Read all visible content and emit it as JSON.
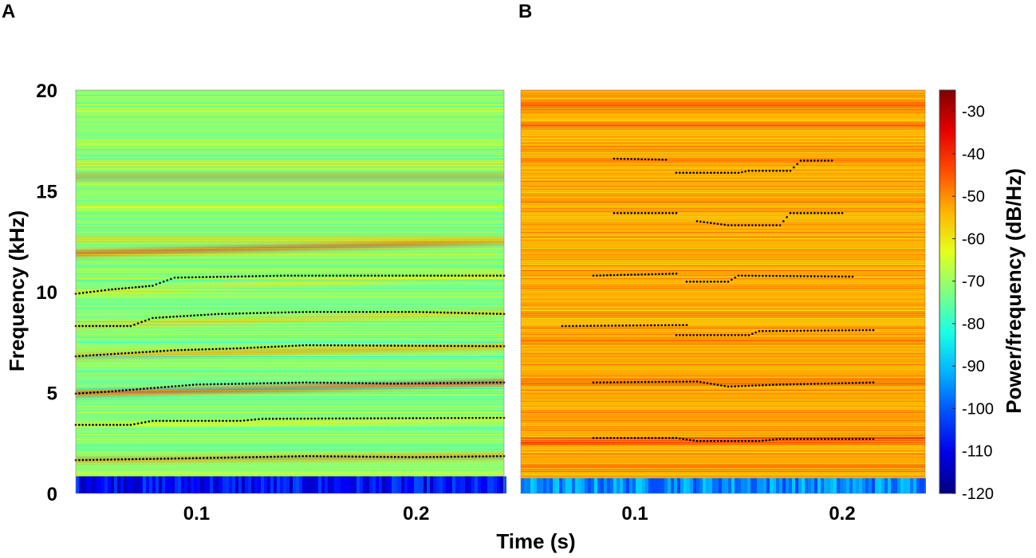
{
  "chart_data": {
    "type": "heatmap",
    "xlabel": "Time (s)",
    "ylabel": "Frequency (kHz)",
    "xlim": [
      0.045,
      0.24
    ],
    "ylim": [
      0,
      20
    ],
    "x_ticks": [
      0.1,
      0.2
    ],
    "x_tick_labels": [
      "0.1",
      "0.2"
    ],
    "y_ticks": [
      0,
      5,
      10,
      15,
      20
    ],
    "y_tick_labels": [
      "0",
      "5",
      "10",
      "15",
      "20"
    ],
    "colorbar": {
      "label": "Power/frequency (dB/Hz)",
      "colormap": "jet",
      "range": [
        -120,
        -25
      ],
      "ticks": [
        -30,
        -40,
        -50,
        -60,
        -70,
        -80,
        -90,
        -100,
        -110,
        -120
      ],
      "tick_labels": [
        "-30",
        "-40",
        "-50",
        "-60",
        "-70",
        "-80",
        "-90",
        "-100",
        "-110",
        "-120"
      ]
    },
    "panels": [
      {
        "letter": "A",
        "background_dB": -72,
        "low_band_dB": -108,
        "low_band_kHz": [
          0,
          0.85
        ],
        "bands": [
          {
            "f": 0.9,
            "dB": -60
          },
          {
            "f": 1.65,
            "dB": -48,
            "f_end": 1.85
          },
          {
            "f": 3.35,
            "dB": -60,
            "f_end": 3.7
          },
          {
            "f": 4.95,
            "dB": -38,
            "f_end": 5.5
          },
          {
            "f": 6.8,
            "dB": -50,
            "f_end": 7.3
          },
          {
            "f": 8.3,
            "dB": -55,
            "f_end": 9.0
          },
          {
            "f": 10.0,
            "dB": -58,
            "f_end": 10.8
          },
          {
            "f": 11.9,
            "dB": -40,
            "f_end": 12.5
          },
          {
            "f": 12.6,
            "dB": -55
          },
          {
            "f": 14.2,
            "dB": -62
          },
          {
            "f": 15.7,
            "dB": -48
          },
          {
            "f": 16.3,
            "dB": -58
          },
          {
            "f": 17.4,
            "dB": -65
          },
          {
            "f": 19.0,
            "dB": -65
          }
        ],
        "tracks": [
          {
            "points": [
              [
                0.045,
                1.65
              ],
              [
                0.1,
                1.75
              ],
              [
                0.15,
                1.85
              ],
              [
                0.2,
                1.8
              ],
              [
                0.24,
                1.85
              ]
            ]
          },
          {
            "points": [
              [
                0.045,
                3.4
              ],
              [
                0.07,
                3.4
              ],
              [
                0.08,
                3.6
              ],
              [
                0.12,
                3.6
              ],
              [
                0.13,
                3.7
              ],
              [
                0.24,
                3.75
              ]
            ]
          },
          {
            "points": [
              [
                0.045,
                4.95
              ],
              [
                0.06,
                5.05
              ],
              [
                0.1,
                5.4
              ],
              [
                0.15,
                5.5
              ],
              [
                0.19,
                5.45
              ],
              [
                0.24,
                5.5
              ]
            ]
          },
          {
            "points": [
              [
                0.045,
                6.8
              ],
              [
                0.09,
                7.1
              ],
              [
                0.12,
                7.2
              ],
              [
                0.15,
                7.35
              ],
              [
                0.24,
                7.3
              ]
            ]
          },
          {
            "points": [
              [
                0.045,
                8.3
              ],
              [
                0.07,
                8.3
              ],
              [
                0.08,
                8.7
              ],
              [
                0.11,
                8.9
              ],
              [
                0.15,
                9.0
              ],
              [
                0.2,
                9.0
              ],
              [
                0.24,
                8.9
              ]
            ]
          },
          {
            "points": [
              [
                0.045,
                9.9
              ],
              [
                0.06,
                10.1
              ],
              [
                0.08,
                10.3
              ],
              [
                0.09,
                10.7
              ],
              [
                0.14,
                10.8
              ],
              [
                0.24,
                10.8
              ]
            ]
          }
        ]
      },
      {
        "letter": "B",
        "background_dB": -53,
        "low_band_dB": -95,
        "low_band_kHz": [
          0,
          0.75
        ],
        "bands": [
          {
            "f": 1.3,
            "dB": -46
          },
          {
            "f": 2.55,
            "dB": -36,
            "f_end": 2.7
          },
          {
            "f": 3.8,
            "dB": -50
          },
          {
            "f": 5.5,
            "dB": -44,
            "f_end": 5.5
          },
          {
            "f": 7.6,
            "dB": -50
          },
          {
            "f": 9.8,
            "dB": -52
          },
          {
            "f": 12.0,
            "dB": -52
          },
          {
            "f": 14.5,
            "dB": -50
          },
          {
            "f": 16.5,
            "dB": -48
          },
          {
            "f": 18.2,
            "dB": -45
          },
          {
            "f": 19.25,
            "dB": -38
          }
        ],
        "tracks": [
          {
            "points": [
              [
                0.08,
                2.75
              ],
              [
                0.12,
                2.75
              ],
              [
                0.13,
                2.6
              ],
              [
                0.16,
                2.6
              ],
              [
                0.17,
                2.7
              ],
              [
                0.215,
                2.7
              ]
            ]
          },
          {
            "points": [
              [
                0.08,
                5.5
              ],
              [
                0.13,
                5.55
              ],
              [
                0.145,
                5.3
              ],
              [
                0.17,
                5.4
              ],
              [
                0.215,
                5.5
              ]
            ]
          },
          {
            "points": [
              [
                0.065,
                8.3
              ],
              [
                0.125,
                8.35
              ]
            ]
          },
          {
            "points": [
              [
                0.12,
                7.85
              ],
              [
                0.155,
                7.85
              ],
              [
                0.16,
                8.05
              ],
              [
                0.215,
                8.1
              ]
            ]
          },
          {
            "points": [
              [
                0.08,
                10.8
              ],
              [
                0.12,
                10.9
              ]
            ]
          },
          {
            "points": [
              [
                0.125,
                10.5
              ],
              [
                0.145,
                10.5
              ],
              [
                0.15,
                10.8
              ],
              [
                0.205,
                10.75
              ]
            ]
          },
          {
            "points": [
              [
                0.09,
                13.9
              ],
              [
                0.12,
                13.9
              ]
            ]
          },
          {
            "points": [
              [
                0.13,
                13.5
              ],
              [
                0.145,
                13.3
              ],
              [
                0.17,
                13.3
              ],
              [
                0.175,
                13.9
              ],
              [
                0.2,
                13.9
              ]
            ]
          },
          {
            "points": [
              [
                0.09,
                16.6
              ],
              [
                0.115,
                16.55
              ]
            ]
          },
          {
            "points": [
              [
                0.12,
                15.9
              ],
              [
                0.15,
                15.9
              ],
              [
                0.155,
                16.0
              ],
              [
                0.175,
                16.0
              ],
              [
                0.18,
                16.5
              ],
              [
                0.195,
                16.5
              ]
            ]
          }
        ]
      }
    ]
  }
}
